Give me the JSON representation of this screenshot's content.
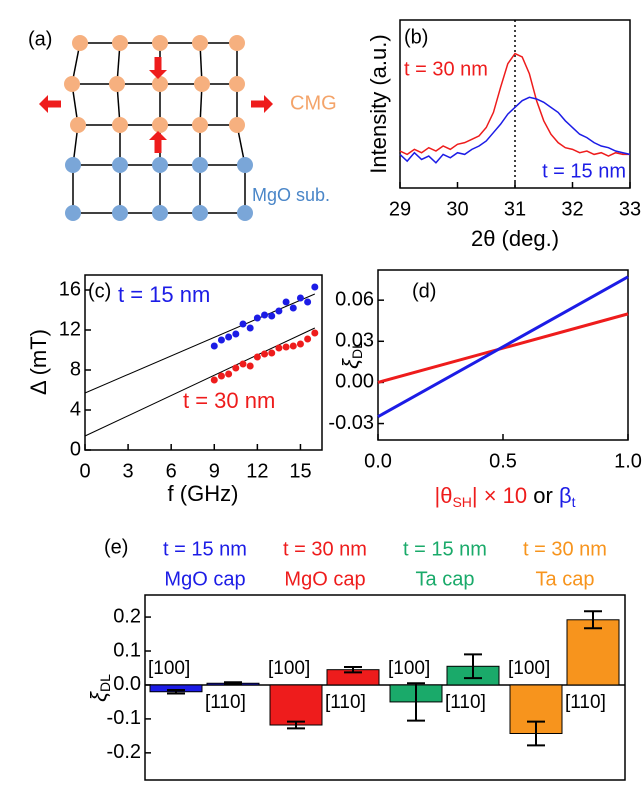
{
  "diagram": {
    "label": "(a)",
    "top_label": "CMG",
    "bottom_label": "MgO sub."
  },
  "chart_data": [
    {
      "type": "line",
      "panel_label": "(b)",
      "xlabel": "2θ (deg.)",
      "ylabel": "Intensity (a.u.)",
      "xlim": [
        29,
        33
      ],
      "xticks": [
        29,
        30,
        31,
        32,
        33
      ],
      "ylim": [
        0,
        1
      ],
      "vline": 31,
      "x": [
        29.0,
        29.125,
        29.25,
        29.375,
        29.5,
        29.625,
        29.75,
        29.875,
        30.0,
        30.125,
        30.25,
        30.375,
        30.5,
        30.625,
        30.75,
        30.875,
        31.0,
        31.125,
        31.25,
        31.375,
        31.5,
        31.625,
        31.75,
        31.875,
        32.0,
        32.125,
        32.25,
        32.375,
        32.5,
        32.625,
        32.75,
        32.875,
        33.0
      ],
      "series": [
        {
          "name": "t = 30 nm",
          "color": "#ee1c1c",
          "values": [
            0.22,
            0.2,
            0.23,
            0.21,
            0.24,
            0.22,
            0.25,
            0.23,
            0.26,
            0.27,
            0.29,
            0.31,
            0.36,
            0.45,
            0.6,
            0.74,
            0.8,
            0.78,
            0.68,
            0.52,
            0.4,
            0.32,
            0.27,
            0.24,
            0.23,
            0.21,
            0.22,
            0.2,
            0.21,
            0.19,
            0.21,
            0.2,
            0.2
          ]
        },
        {
          "name": "t = 15 nm",
          "color": "#1c1ce6",
          "values": [
            0.2,
            0.16,
            0.21,
            0.17,
            0.19,
            0.15,
            0.2,
            0.18,
            0.21,
            0.2,
            0.23,
            0.25,
            0.28,
            0.33,
            0.38,
            0.44,
            0.48,
            0.52,
            0.54,
            0.53,
            0.51,
            0.48,
            0.45,
            0.4,
            0.36,
            0.32,
            0.3,
            0.27,
            0.25,
            0.24,
            0.22,
            0.21,
            0.2
          ]
        }
      ]
    },
    {
      "type": "scatter",
      "panel_label": "(c)",
      "xlabel": "f (GHz)",
      "ylabel": "Δ (mT)",
      "xlim": [
        0,
        16.5
      ],
      "xticks": [
        0,
        3,
        6,
        9,
        12,
        15
      ],
      "ylim": [
        0,
        17.5
      ],
      "yticks": [
        0,
        4,
        8,
        12,
        16
      ],
      "series": [
        {
          "name": "t = 15 nm",
          "color": "#1c1ce6",
          "x": [
            9,
            9.5,
            10,
            10.5,
            11,
            11.5,
            12,
            12.5,
            13,
            13.5,
            14,
            14.5,
            15,
            15.5,
            16
          ],
          "values": [
            10.4,
            11,
            11.3,
            11.6,
            12.6,
            12.2,
            13.2,
            13.5,
            13.4,
            13.9,
            14.8,
            14.2,
            15.2,
            14.8,
            16.3
          ]
        },
        {
          "name": "t = 30 nm",
          "color": "#ee1c1c",
          "x": [
            9,
            9.5,
            10,
            10.5,
            11,
            11.5,
            12,
            12.5,
            13,
            13.5,
            14,
            14.5,
            15,
            15.5,
            16
          ],
          "values": [
            7,
            7.4,
            7.6,
            8.2,
            8.6,
            8.4,
            9.3,
            9.6,
            9.7,
            10.2,
            10.3,
            10.4,
            10.6,
            11.1,
            11.7
          ]
        }
      ],
      "fits": [
        {
          "color": "#000000",
          "x": [
            0,
            16
          ],
          "values": [
            5.7,
            15.6
          ]
        },
        {
          "color": "#000000",
          "x": [
            0,
            16
          ],
          "values": [
            1.4,
            12.2
          ]
        }
      ]
    },
    {
      "type": "line",
      "panel_label": "(d)",
      "ylabel": [
        "ξ",
        "DL"
      ],
      "xlabel": [
        {
          "text": "|θ",
          "color": "#ee1c1c"
        },
        {
          "text": "SH",
          "color": "#ee1c1c",
          "sub": true
        },
        {
          "text": "| × 10",
          "color": "#ee1c1c"
        },
        {
          "text": " or ",
          "color": "#000000"
        },
        {
          "text": "β",
          "color": "#1c1ce6"
        },
        {
          "text": "t",
          "color": "#1c1ce6",
          "sub": true
        }
      ],
      "xlim": [
        0,
        1
      ],
      "xticks": [
        {
          "value": 0,
          "label": "0.0"
        },
        0.5,
        {
          "value": 1,
          "label": "1.0"
        }
      ],
      "ylim": [
        -0.042,
        0.082
      ],
      "yticks": [
        0.06,
        0.03,
        {
          "value": 0,
          "label": "0.00"
        },
        -0.03
      ],
      "series": [
        {
          "color": "#ee1c1c",
          "x": [
            0,
            1
          ],
          "values": [
            0.0,
            0.05
          ]
        },
        {
          "color": "#1c1ce6",
          "x": [
            0,
            1
          ],
          "values": [
            -0.025,
            0.077
          ]
        }
      ]
    },
    {
      "type": "bar",
      "panel_label": "(e)",
      "ylabel": [
        "ξ",
        "DL"
      ],
      "ylim": [
        -0.28,
        0.265
      ],
      "yticks": [
        0.2,
        0.1,
        {
          "value": 0,
          "label": "0.0"
        },
        -0.1,
        -0.2
      ],
      "categories": [
        "[100]",
        "[110]"
      ],
      "series": [
        {
          "name": "t = 15 nm",
          "cap": "MgO cap",
          "color": "#1c1ce6",
          "values": [
            -0.02,
            0.005
          ],
          "errors": [
            0.005,
            0.003
          ]
        },
        {
          "name": "t = 30 nm",
          "cap": "MgO cap",
          "color": "#ee1c1c",
          "values": [
            -0.118,
            0.045
          ],
          "errors": [
            0.01,
            0.008
          ]
        },
        {
          "name": "t = 15 nm",
          "cap": "Ta cap",
          "color": "#1aaa6a",
          "values": [
            -0.05,
            0.055
          ],
          "errors": [
            0.055,
            0.035
          ]
        },
        {
          "name": "t = 30 nm",
          "cap": "Ta cap",
          "color": "#f7941d",
          "values": [
            -0.143,
            0.192
          ],
          "errors": [
            0.035,
            0.025
          ]
        }
      ]
    }
  ]
}
